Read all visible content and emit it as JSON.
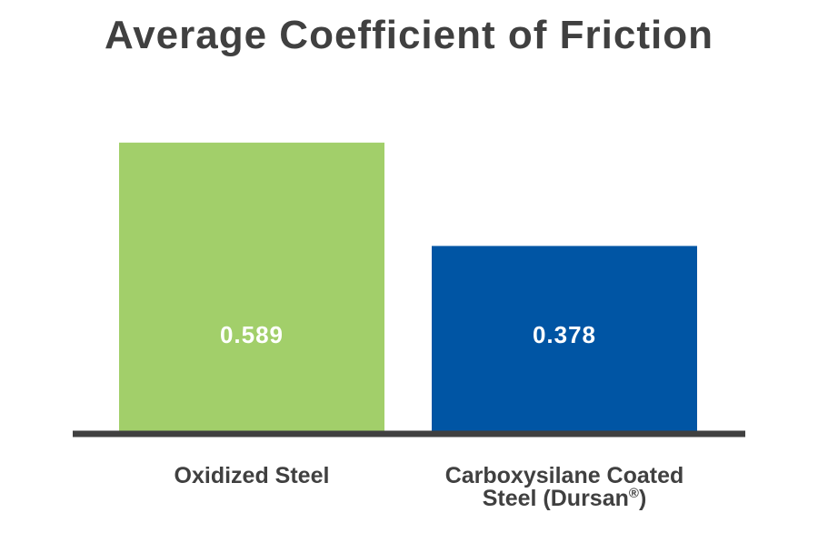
{
  "chart_data": {
    "type": "bar",
    "title": "Average Coefficient of Friction",
    "xlabel": "",
    "ylabel": "",
    "ylim": [
      0,
      0.7
    ],
    "grid": false,
    "legend": "none",
    "categories": [
      {
        "lines": [
          "Oxidized Steel"
        ]
      },
      {
        "lines": [
          "Carboxysilane Coated",
          "Steel (Dursan",
          "®",
          ")"
        ]
      }
    ],
    "series": [
      {
        "values": [
          0.589,
          0.378
        ],
        "labels": [
          "0.589",
          "0.378"
        ],
        "colors": [
          "#a2cf6a",
          "#0055a4"
        ]
      }
    ],
    "axis_color": "#404040"
  }
}
